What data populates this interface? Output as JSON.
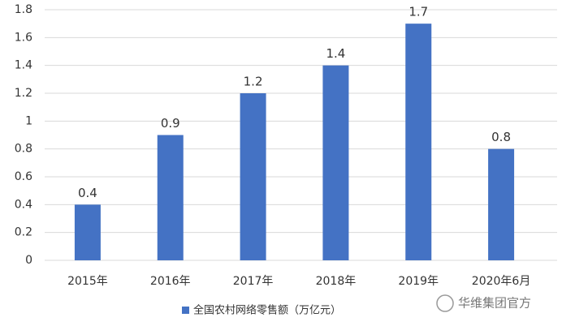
{
  "chart_data": {
    "type": "bar",
    "categories": [
      "2015年",
      "2016年",
      "2017年",
      "2018年",
      "2019年",
      "2020年6月"
    ],
    "series": [
      {
        "name": "全国农村网络零售额（万亿元）",
        "color": "#4472c4",
        "values": [
          0.4,
          0.9,
          1.2,
          1.4,
          1.7,
          0.8
        ]
      }
    ],
    "ylim": [
      0,
      1.8
    ],
    "yticks": [
      0,
      0.2,
      0.4,
      0.6,
      0.8,
      1,
      1.2,
      1.4,
      1.6,
      1.8
    ],
    "grid": true,
    "data_labels": true,
    "legend": "bottom",
    "watermark": "华维集团官方"
  }
}
